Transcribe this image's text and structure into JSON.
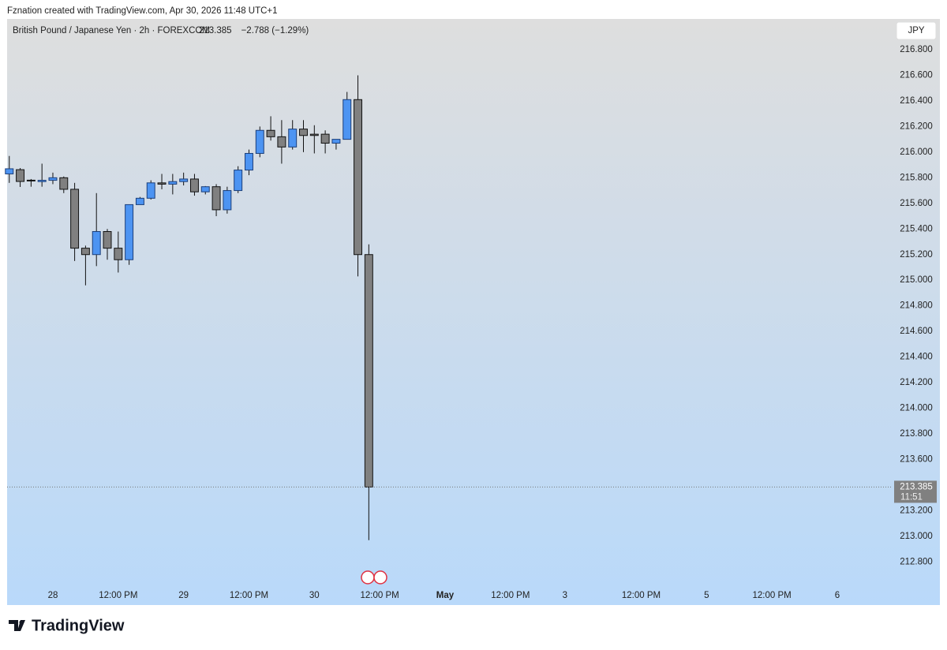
{
  "attribution": "Fznation created with TradingView.com, Apr 30, 2026 11:48 UTC+1",
  "brand": "TradingView",
  "chart_data": {
    "type": "candlestick",
    "symbol": "British Pound / Japanese Yen · 2h · FOREXCOM",
    "last": 213.385,
    "last_label": "213.385",
    "change": "−2.788 (−1.29%)",
    "countdown": "11:51",
    "currency": "JPY",
    "up_color": "#4d94f2",
    "down_color": "#808080",
    "open": [
      215.83,
      215.863,
      215.781,
      215.77,
      215.78,
      215.8,
      215.71,
      215.25,
      215.2,
      215.38,
      215.25,
      215.16,
      215.59,
      215.64,
      215.76,
      215.75,
      215.77,
      215.79,
      215.69,
      215.73,
      215.55,
      215.7,
      215.86,
      215.99,
      216.17,
      216.12,
      216.04,
      216.18,
      216.14,
      216.14,
      216.07,
      216.1,
      216.41,
      215.2
    ],
    "high": [
      215.97,
      215.876,
      215.79,
      215.91,
      215.84,
      215.81,
      215.76,
      215.27,
      215.68,
      215.4,
      215.38,
      215.59,
      215.65,
      215.78,
      215.83,
      215.83,
      215.84,
      215.83,
      215.735,
      215.75,
      215.73,
      215.89,
      216.02,
      216.2,
      216.28,
      216.25,
      216.25,
      216.25,
      216.21,
      216.17,
      216.1,
      216.47,
      216.6,
      215.28
    ],
    "low": [
      215.76,
      215.728,
      215.73,
      215.73,
      215.75,
      215.68,
      215.15,
      214.96,
      215.11,
      215.16,
      215.06,
      215.12,
      215.59,
      215.63,
      215.71,
      215.67,
      215.74,
      215.66,
      215.67,
      215.5,
      215.52,
      215.68,
      215.82,
      215.96,
      216.09,
      215.91,
      216.02,
      216.0,
      215.99,
      215.99,
      216.02,
      216.1,
      215.03,
      212.97
    ],
    "close": [
      215.87,
      215.771,
      215.776,
      215.78,
      215.8,
      215.71,
      215.25,
      215.2,
      215.38,
      215.25,
      215.16,
      215.59,
      215.64,
      215.76,
      215.75,
      215.77,
      215.79,
      215.69,
      215.73,
      215.55,
      215.7,
      215.86,
      215.99,
      216.17,
      216.12,
      216.04,
      216.18,
      216.13,
      216.13,
      216.07,
      216.1,
      216.41,
      215.2,
      213.385
    ],
    "xlim": [
      -0.2,
      81
    ],
    "xticks": [
      {
        "value": 4,
        "label": "28"
      },
      {
        "value": 10,
        "label": "12:00 PM"
      },
      {
        "value": 16,
        "label": "29"
      },
      {
        "value": 22,
        "label": "12:00 PM"
      },
      {
        "value": 28,
        "label": "30"
      },
      {
        "value": 34,
        "label": "12:00 PM"
      },
      {
        "value": 40,
        "label": "May"
      },
      {
        "value": 46,
        "label": "12:00 PM"
      },
      {
        "value": 51,
        "label": "3"
      },
      {
        "value": 58,
        "label": "12:00 PM"
      },
      {
        "value": 64,
        "label": "5"
      },
      {
        "value": 70,
        "label": "12:00 PM"
      },
      {
        "value": 76,
        "label": "6"
      }
    ],
    "ylim": [
      212.63,
      217.04
    ],
    "yticks": [
      {
        "value": 212.8,
        "label": "212.800"
      },
      {
        "value": 213,
        "label": "213.000"
      },
      {
        "value": 213.2,
        "label": "213.200"
      },
      {
        "value": 213.6,
        "label": "213.600"
      },
      {
        "value": 213.8,
        "label": "213.800"
      },
      {
        "value": 214,
        "label": "214.000"
      },
      {
        "value": 214.2,
        "label": "214.200"
      },
      {
        "value": 214.4,
        "label": "214.400"
      },
      {
        "value": 214.6,
        "label": "214.600"
      },
      {
        "value": 214.8,
        "label": "214.800"
      },
      {
        "value": 215,
        "label": "215.000"
      },
      {
        "value": 215.2,
        "label": "215.200"
      },
      {
        "value": 215.4,
        "label": "215.400"
      },
      {
        "value": 215.6,
        "label": "215.600"
      },
      {
        "value": 215.8,
        "label": "215.800"
      },
      {
        "value": 216,
        "label": "216.000"
      },
      {
        "value": 216.2,
        "label": "216.200"
      },
      {
        "value": 216.4,
        "label": "216.400"
      },
      {
        "value": 216.6,
        "label": "216.600"
      },
      {
        "value": 216.8,
        "label": "216.800"
      }
    ]
  }
}
